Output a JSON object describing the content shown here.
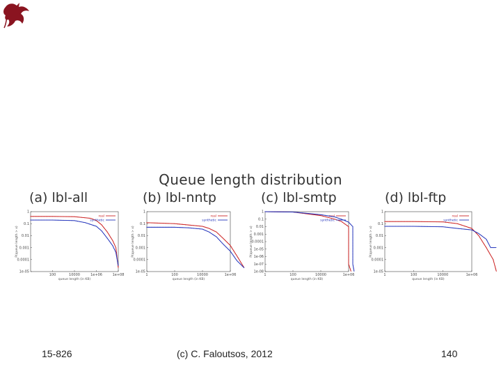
{
  "logo": {
    "icon": "dragon-icon",
    "color": "#8a1420"
  },
  "title": "Queue length distribution",
  "footer": {
    "course": "15-826",
    "copyright": "(c) C. Faloutsos, 2012",
    "page": "140"
  },
  "colors": {
    "real": "#cc2222",
    "synthetic": "#2233bb"
  },
  "chart_data": [
    {
      "type": "line",
      "label": "(a) lbl-all",
      "xscale": "log",
      "yscale": "log",
      "x_ticks": [
        "100",
        "10000",
        "1e+06",
        "1e+08"
      ],
      "y_ticks": [
        "1",
        "0.1",
        "0.01",
        "0.001",
        "0.0001",
        "1e-05"
      ],
      "xlabel": "queue length (in KB)",
      "ylabel": "P(queue length > x)",
      "legend": [
        "real",
        "synthetic"
      ],
      "series": [
        {
          "name": "real",
          "x": [
            1,
            100,
            10000,
            300000,
            1000000,
            3000000,
            10000000,
            30000000,
            60000000,
            100000000
          ],
          "y": [
            0.4,
            0.4,
            0.38,
            0.28,
            0.18,
            0.08,
            0.02,
            0.004,
            0.001,
            2e-05
          ]
        },
        {
          "name": "synthetic",
          "x": [
            1,
            100,
            10000,
            100000,
            1000000,
            3000000,
            10000000,
            30000000,
            60000000,
            100000000
          ],
          "y": [
            0.2,
            0.2,
            0.18,
            0.12,
            0.06,
            0.025,
            0.006,
            0.0015,
            0.0004,
            3e-05
          ]
        }
      ]
    },
    {
      "type": "line",
      "label": "(b) lbl-nntp",
      "xscale": "log",
      "yscale": "log",
      "x_ticks": [
        "1",
        "100",
        "10000",
        "1e+06"
      ],
      "y_ticks": [
        "1",
        "0.1",
        "0.01",
        "0.001",
        "0.0001",
        "1e-05"
      ],
      "xlabel": "queue length (in KB)",
      "ylabel": "P(queue length > x)",
      "legend": [
        "real",
        "synthetic"
      ],
      "series": [
        {
          "name": "real",
          "x": [
            1,
            100,
            10000,
            30000,
            100000,
            300000,
            1000000,
            3000000,
            10000000
          ],
          "y": [
            0.12,
            0.1,
            0.06,
            0.04,
            0.02,
            0.006,
            0.0015,
            0.0002,
            2e-05
          ]
        },
        {
          "name": "synthetic",
          "x": [
            1,
            100,
            1000,
            10000,
            30000,
            100000,
            300000,
            1000000,
            3000000,
            10000000
          ],
          "y": [
            0.05,
            0.05,
            0.045,
            0.035,
            0.02,
            0.008,
            0.002,
            0.0005,
            8e-05,
            2e-05
          ]
        }
      ]
    },
    {
      "type": "line",
      "label": "(c) lbl-smtp",
      "xscale": "log",
      "yscale": "log",
      "x_ticks": [
        "1",
        "100",
        "10000",
        "1e+06"
      ],
      "y_ticks": [
        "1",
        "0.1",
        "0.01",
        "0.001",
        "0.0001",
        "1e-05",
        "1e-06",
        "1e-07",
        "1e-08"
      ],
      "xlabel": "queue length (in KB)",
      "ylabel": "P(queue length > x)",
      "legend": [
        "real",
        "synthetic"
      ],
      "series": [
        {
          "name": "real",
          "x": [
            1,
            100,
            10000,
            100000,
            300000,
            1000000,
            1000000,
            1500000
          ],
          "y": [
            1,
            0.9,
            0.3,
            0.1,
            0.05,
            0.01,
            1e-07,
            1e-08
          ]
        },
        {
          "name": "synthetic",
          "x": [
            1,
            100,
            10000,
            100000,
            300000,
            1000000,
            2000000,
            2000000,
            2500000
          ],
          "y": [
            1,
            0.9,
            0.4,
            0.2,
            0.1,
            0.04,
            0.01,
            1e-07,
            1e-08
          ]
        }
      ]
    },
    {
      "type": "line",
      "label": "(d) lbl-ftp",
      "xscale": "log",
      "yscale": "log",
      "x_ticks": [
        "1",
        "100",
        "10000",
        "1e+06"
      ],
      "y_ticks": [
        "1",
        "0.1",
        "0.01",
        "0.001",
        "0.0001",
        "1e-05"
      ],
      "xlabel": "queue length (in KB)",
      "ylabel": "P(queue length > x)",
      "legend": [
        "real",
        "synthetic"
      ],
      "series": [
        {
          "name": "real",
          "x": [
            1,
            100,
            10000,
            100000,
            1000000,
            3000000,
            10000000,
            30000000,
            50000000
          ],
          "y": [
            0.15,
            0.15,
            0.14,
            0.1,
            0.04,
            0.01,
            0.001,
            0.0001,
            1e-05
          ]
        },
        {
          "name": "synthetic",
          "x": [
            1,
            100,
            10000,
            100000,
            1000000,
            3000000,
            10000000,
            20000000,
            50000000
          ],
          "y": [
            0.06,
            0.06,
            0.055,
            0.04,
            0.03,
            0.015,
            0.005,
            0.001,
            0.001
          ]
        }
      ]
    }
  ]
}
